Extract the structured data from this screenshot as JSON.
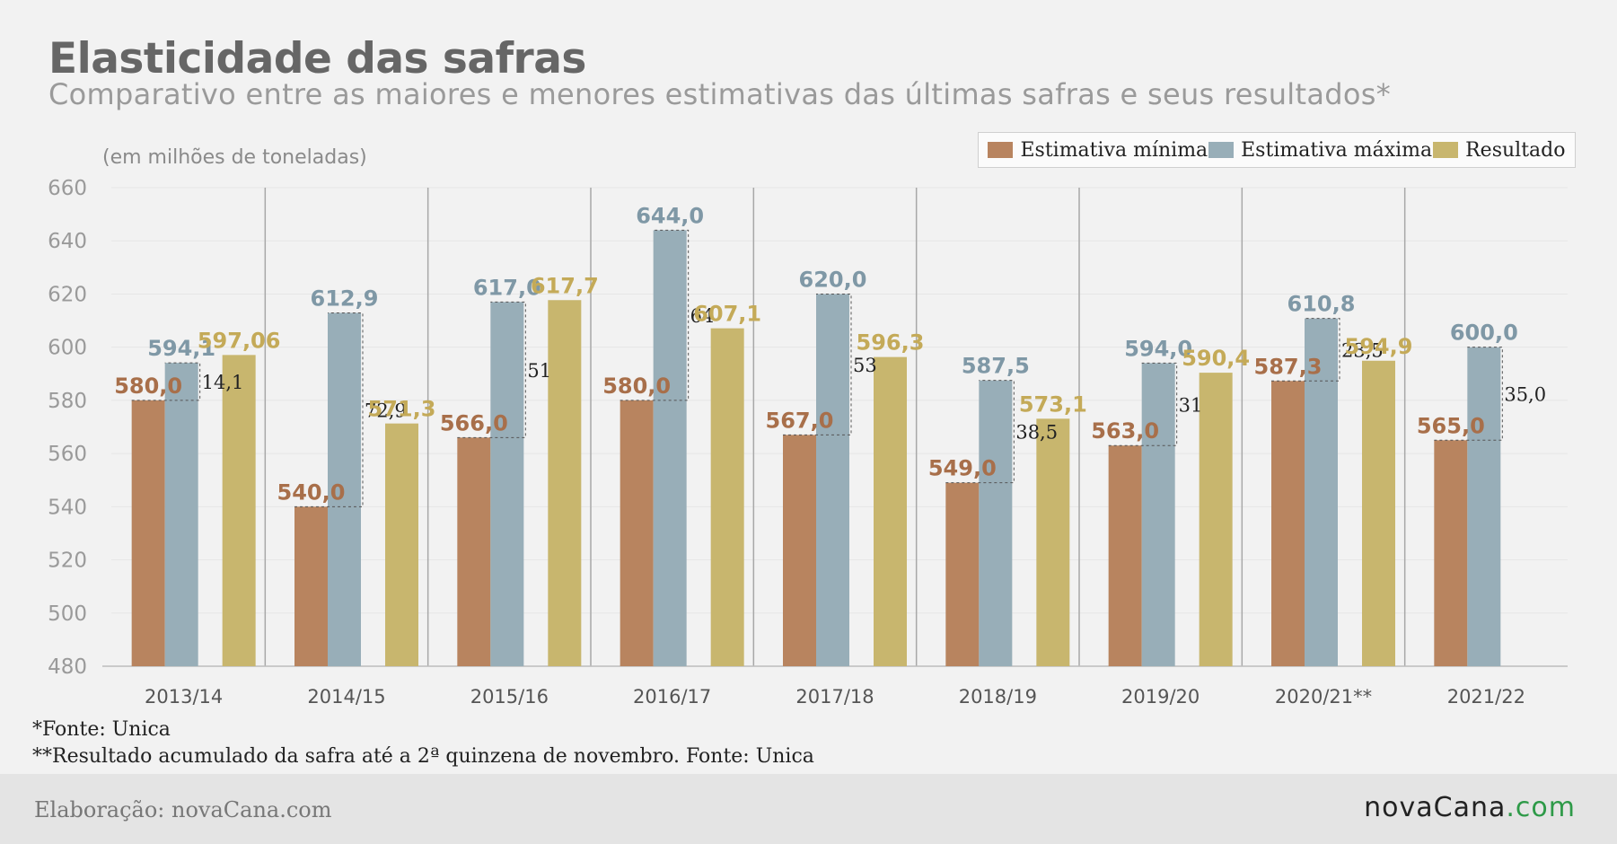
{
  "header": {
    "title": "Elasticidade das safras",
    "subtitle": "Comparativo entre as maiores e menores estimativas das últimas safras e seus resultados*"
  },
  "chart_data": {
    "type": "bar",
    "unit_label": "(em milhões de toneladas)",
    "categories": [
      "2013/14",
      "2014/15",
      "2015/16",
      "2016/17",
      "2017/18",
      "2018/19",
      "2019/20",
      "2020/21**",
      "2021/22"
    ],
    "ylim": [
      480,
      660
    ],
    "yticks": [
      480,
      500,
      520,
      540,
      560,
      580,
      600,
      620,
      640,
      660
    ],
    "grid": true,
    "legend_position": "top-right",
    "series": [
      {
        "name": "Estimativa mínima",
        "color": "#b8845f",
        "values": [
          580.0,
          540.0,
          566.0,
          580.0,
          567.0,
          549.0,
          563.0,
          587.3,
          565.0
        ],
        "labels": [
          "580,0",
          "540,0",
          "566,0",
          "580,0",
          "567,0",
          "549,0",
          "563,0",
          "587,3",
          "565,0"
        ]
      },
      {
        "name": "Estimativa máxima",
        "color": "#98aeb8",
        "values": [
          594.1,
          612.9,
          617.0,
          644.0,
          620.0,
          587.5,
          594.0,
          610.8,
          600.0
        ],
        "labels": [
          "594,1",
          "612,9",
          "617,0",
          "644,0",
          "620,0",
          "587,5",
          "594,0",
          "610,8",
          "600,0"
        ]
      },
      {
        "name": "Resultado",
        "color": "#c8b66e",
        "values": [
          597.06,
          571.3,
          617.7,
          607.1,
          596.3,
          573.1,
          590.4,
          594.9,
          null
        ],
        "labels": [
          "597,06",
          "571,3",
          "617,7",
          "607,1",
          "596,3",
          "573,1",
          "590,4",
          "594,9",
          ""
        ]
      }
    ],
    "differences": [
      "14,1",
      "72,9",
      "51",
      "64",
      "53",
      "38,5",
      "31",
      "23,5",
      "35,0"
    ]
  },
  "footnotes": {
    "source": "*Fonte: Unica",
    "partial": "**Resultado acumulado da safra até a 2ª quinzena de novembro. Fonte: Unica"
  },
  "footer": {
    "credit": "Elaboração: novaCana.com",
    "logo_main": "novaCana",
    "logo_tld": ".com"
  }
}
